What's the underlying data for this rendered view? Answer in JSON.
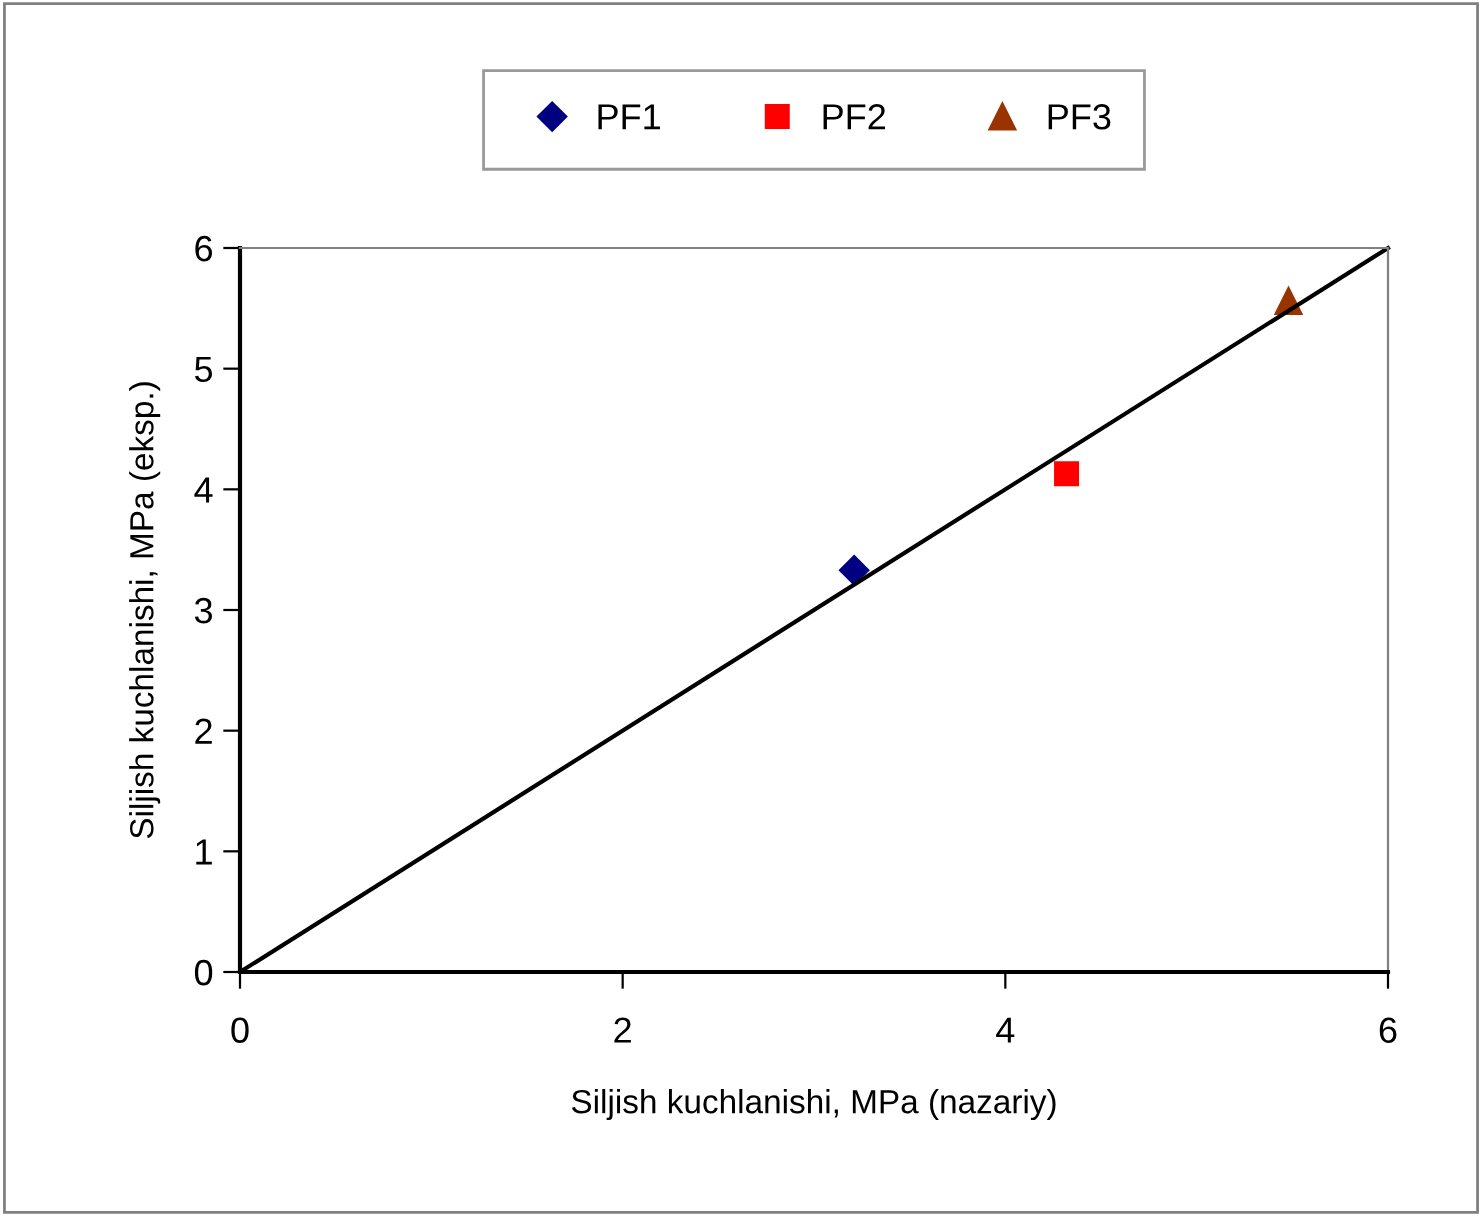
{
  "chart_data": {
    "type": "scatter",
    "xlabel": "Siljish kuchlanishi, MPa (nazariy)",
    "ylabel": "Siljish kuchlanishi, MPa (eksp.)",
    "xlim": [
      0,
      6
    ],
    "ylim": [
      0,
      6
    ],
    "xticks": [
      0,
      2,
      4,
      6
    ],
    "yticks": [
      0,
      1,
      2,
      3,
      4,
      5,
      6
    ],
    "grid": false,
    "legend": "top",
    "series": [
      {
        "name": "PF1",
        "color": "#000080",
        "marker": "diamond",
        "x": [
          3.21
        ],
        "values": [
          3.33
        ]
      },
      {
        "name": "PF2",
        "color": "#ff0000",
        "marker": "square",
        "x": [
          4.32
        ],
        "values": [
          4.13
        ]
      },
      {
        "name": "PF3",
        "color": "#993300",
        "marker": "triangle",
        "x": [
          5.48
        ],
        "values": [
          5.56
        ]
      },
      {
        "type": "line",
        "color": "#000000",
        "marker": "none",
        "line_style": "solid",
        "x": [
          0,
          6
        ],
        "values": [
          0,
          6
        ]
      }
    ]
  }
}
